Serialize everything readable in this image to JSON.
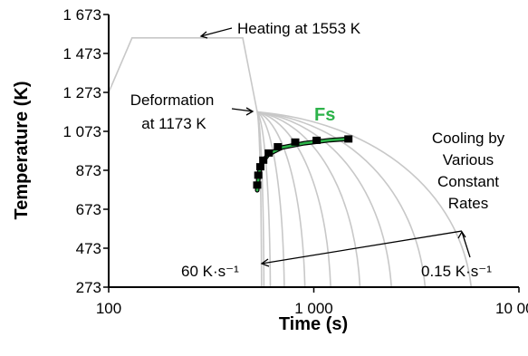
{
  "chart_data": {
    "type": "line",
    "xlabel": "Time (s)",
    "ylabel": "Temperature (K)",
    "x_scale": "log",
    "xlim": [
      100,
      10000
    ],
    "ylim": [
      273,
      1673
    ],
    "x_ticks": [
      100,
      1000,
      10000
    ],
    "x_tick_labels": [
      "100",
      "1 000",
      "10 000"
    ],
    "y_ticks": [
      273,
      473,
      673,
      873,
      1073,
      1273,
      1473,
      1673
    ],
    "y_tick_labels": [
      "273",
      "473",
      "673",
      "873",
      "1 073",
      "1 273",
      "1 473",
      "1 673"
    ],
    "grid": false,
    "colors": {
      "thermal_path": "#c8c8c8",
      "fs_fit": "#2db34a",
      "fs_points": "#000000",
      "axis": "#000000"
    },
    "thermal_path": {
      "x": [
        100,
        130,
        450,
        530
      ],
      "y": [
        1273,
        1553,
        1553,
        1173
      ]
    },
    "cooling_curves_end_time_s": [
      556,
      571,
      614,
      718,
      905,
      1208,
      1679,
      2390,
      3488,
      5850
    ],
    "cooling_curves_end_temp_K": 273,
    "fs_points": {
      "x": [
        530,
        536,
        549,
        567,
        603,
        668,
        812,
        1032,
        1475
      ],
      "y": [
        797,
        848,
        891,
        925,
        962,
        994,
        1018,
        1027,
        1034
      ]
    },
    "fs_fit": {
      "x": [
        530,
        540,
        560,
        600,
        700,
        900,
        1200,
        1500
      ],
      "y": [
        770,
        860,
        915,
        955,
        990,
        1012,
        1028,
        1035
      ]
    },
    "annotations": {
      "heating": "Heating at 1553 K",
      "deformation_line1": "Deformation",
      "deformation_line2": "at 1173 K",
      "fs": "Fs",
      "cooling_line1": "Cooling by",
      "cooling_line2": "Various",
      "cooling_line3": "Constant",
      "cooling_line4": "Rates",
      "fast_rate": "60 K·s⁻¹",
      "slow_rate": "0.15 K·s⁻¹"
    }
  }
}
